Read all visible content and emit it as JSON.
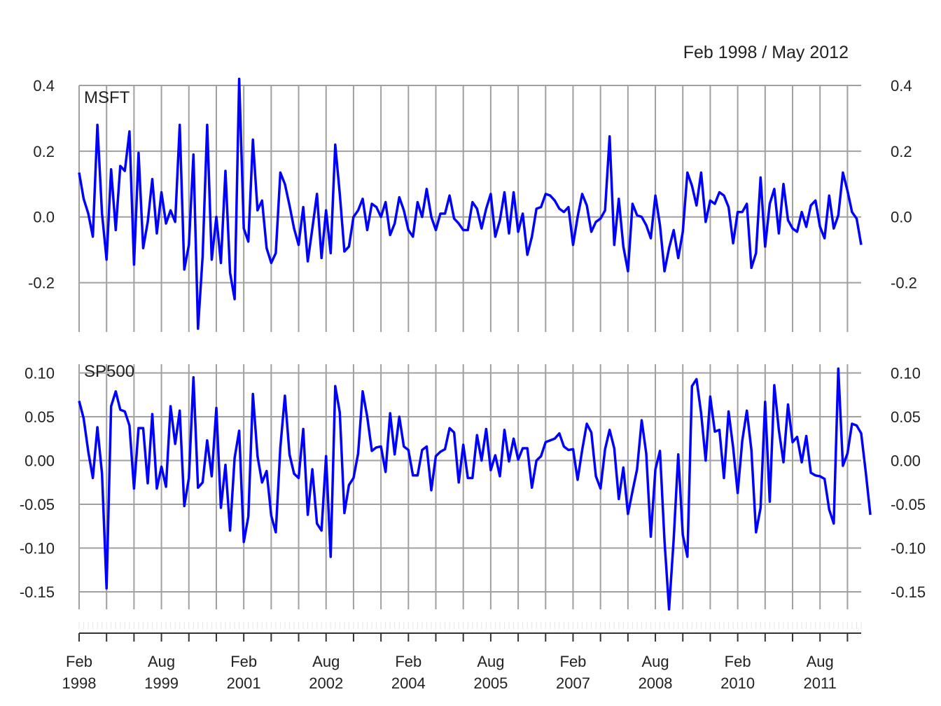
{
  "date_range": "Feb 1998 / May 2012",
  "x_tick_labels": [
    {
      "month": "Feb",
      "year": "1998"
    },
    {
      "month": "Aug",
      "year": "1999"
    },
    {
      "month": "Feb",
      "year": "2001"
    },
    {
      "month": "Aug",
      "year": "2002"
    },
    {
      "month": "Feb",
      "year": "2004"
    },
    {
      "month": "Aug",
      "year": "2005"
    },
    {
      "month": "Feb",
      "year": "2007"
    },
    {
      "month": "Aug",
      "year": "2008"
    },
    {
      "month": "Feb",
      "year": "2010"
    },
    {
      "month": "Aug",
      "year": "2011"
    }
  ],
  "colors": {
    "series": "#0000ff",
    "grid": "#a0a0a0",
    "axis": "#333333",
    "text": "#222222"
  },
  "chart_data": [
    {
      "type": "line",
      "series_label": "MSFT",
      "x_start": "1998-02",
      "x_end": "2012-05",
      "frequency": "monthly",
      "ylim": [
        -0.35,
        0.4
      ],
      "y_ticks": [
        -0.2,
        0.0,
        0.2,
        0.4
      ],
      "y_tick_labels": [
        "-0.2",
        "0.0",
        "0.2",
        "0.4"
      ],
      "grid": true,
      "values": [
        0.135,
        0.055,
        0.01,
        -0.06,
        0.28,
        0.01,
        -0.13,
        0.145,
        -0.04,
        0.155,
        0.14,
        0.26,
        -0.145,
        0.195,
        -0.095,
        -0.015,
        0.115,
        -0.05,
        0.075,
        -0.02,
        0.02,
        -0.015,
        0.28,
        -0.16,
        -0.085,
        0.19,
        -0.34,
        -0.12,
        0.28,
        -0.13,
        0.0,
        -0.14,
        0.14,
        -0.17,
        -0.25,
        0.42,
        -0.035,
        -0.075,
        0.235,
        0.02,
        0.05,
        -0.095,
        -0.14,
        -0.11,
        0.135,
        0.1,
        0.035,
        -0.035,
        -0.085,
        0.03,
        -0.135,
        -0.035,
        0.07,
        -0.125,
        0.02,
        -0.11,
        0.22,
        0.07,
        -0.105,
        -0.09,
        0.0,
        0.02,
        0.055,
        -0.04,
        0.04,
        0.03,
        0.0,
        0.045,
        -0.055,
        -0.02,
        0.06,
        0.02,
        -0.04,
        -0.06,
        0.045,
        0.0,
        0.085,
        0.0,
        -0.04,
        0.01,
        0.01,
        0.065,
        -0.005,
        -0.02,
        -0.04,
        -0.04,
        0.045,
        0.025,
        -0.035,
        0.025,
        0.07,
        -0.06,
        -0.01,
        0.075,
        -0.05,
        0.075,
        -0.045,
        0.01,
        -0.115,
        -0.06,
        0.025,
        0.03,
        0.07,
        0.065,
        0.05,
        0.025,
        0.015,
        0.03,
        -0.085,
        0.0,
        0.07,
        0.035,
        -0.045,
        -0.015,
        -0.005,
        0.02,
        0.245,
        -0.085,
        0.055,
        -0.09,
        -0.165,
        0.04,
        0.005,
        0.0,
        -0.025,
        -0.065,
        0.065,
        -0.025,
        -0.165,
        -0.095,
        -0.04,
        -0.125,
        -0.045,
        0.135,
        0.095,
        0.035,
        0.135,
        -0.015,
        0.05,
        0.04,
        0.075,
        0.065,
        0.03,
        -0.08,
        0.015,
        0.015,
        0.04,
        -0.155,
        -0.11,
        0.12,
        -0.09,
        0.04,
        0.085,
        -0.05,
        0.1,
        -0.01,
        -0.035,
        -0.045,
        0.015,
        -0.03,
        0.035,
        0.05,
        -0.03,
        -0.065,
        0.065,
        -0.035,
        0.005,
        0.135,
        0.08,
        0.015,
        -0.005,
        -0.085
      ]
    },
    {
      "type": "line",
      "series_label": "SP500",
      "x_start": "1998-02",
      "x_end": "2012-05",
      "frequency": "monthly",
      "ylim": [
        -0.17,
        0.11
      ],
      "y_ticks": [
        -0.15,
        -0.1,
        -0.05,
        0.0,
        0.05,
        0.1
      ],
      "y_tick_labels": [
        "-0.15",
        "-0.10",
        "-0.05",
        "0.00",
        "0.05",
        "0.10"
      ],
      "grid": true,
      "values": [
        0.068,
        0.048,
        0.01,
        -0.02,
        0.038,
        -0.015,
        -0.146,
        0.062,
        0.079,
        0.058,
        0.056,
        0.04,
        -0.032,
        0.037,
        0.037,
        -0.026,
        0.053,
        -0.032,
        -0.007,
        -0.03,
        0.062,
        0.019,
        0.057,
        -0.052,
        -0.02,
        0.095,
        -0.031,
        -0.025,
        0.023,
        -0.018,
        0.06,
        -0.054,
        -0.005,
        -0.08,
        0.003,
        0.034,
        -0.093,
        -0.064,
        0.076,
        0.005,
        -0.025,
        -0.012,
        -0.063,
        -0.082,
        0.015,
        0.074,
        0.007,
        -0.015,
        -0.02,
        0.036,
        -0.062,
        -0.01,
        -0.072,
        -0.08,
        0.005,
        -0.11,
        0.085,
        0.055,
        -0.06,
        -0.028,
        -0.02,
        0.008,
        0.079,
        0.05,
        0.011,
        0.015,
        0.016,
        -0.013,
        0.054,
        0.007,
        0.05,
        0.016,
        0.012,
        -0.017,
        -0.017,
        0.012,
        0.016,
        -0.034,
        0.005,
        0.01,
        0.013,
        0.037,
        0.032,
        -0.025,
        0.018,
        -0.02,
        -0.02,
        0.029,
        0.0,
        0.036,
        -0.011,
        0.006,
        -0.018,
        0.035,
        -0.001,
        0.025,
        0.001,
        0.014,
        0.014,
        -0.031,
        0.0,
        0.005,
        0.021,
        0.023,
        0.025,
        0.031,
        0.016,
        0.012,
        0.013,
        -0.022,
        0.012,
        0.042,
        0.032,
        -0.018,
        -0.032,
        0.013,
        0.035,
        0.014,
        -0.044,
        -0.008,
        -0.061,
        -0.035,
        -0.01,
        0.046,
        0.008,
        -0.087,
        -0.01,
        0.011,
        -0.092,
        -0.17,
        -0.09,
        0.007,
        -0.085,
        -0.11,
        0.085,
        0.093,
        0.054,
        0.0,
        0.073,
        0.033,
        0.035,
        -0.02,
        0.056,
        0.015,
        -0.037,
        0.023,
        0.057,
        0.012,
        -0.082,
        -0.054,
        0.067,
        -0.047,
        0.086,
        0.035,
        -0.002,
        0.064,
        0.021,
        0.027,
        -0.002,
        0.028,
        -0.014,
        -0.017,
        -0.018,
        -0.021,
        -0.056,
        -0.072,
        0.105,
        -0.006,
        0.008,
        0.042,
        0.04,
        0.031,
        -0.013,
        -0.062
      ]
    }
  ]
}
